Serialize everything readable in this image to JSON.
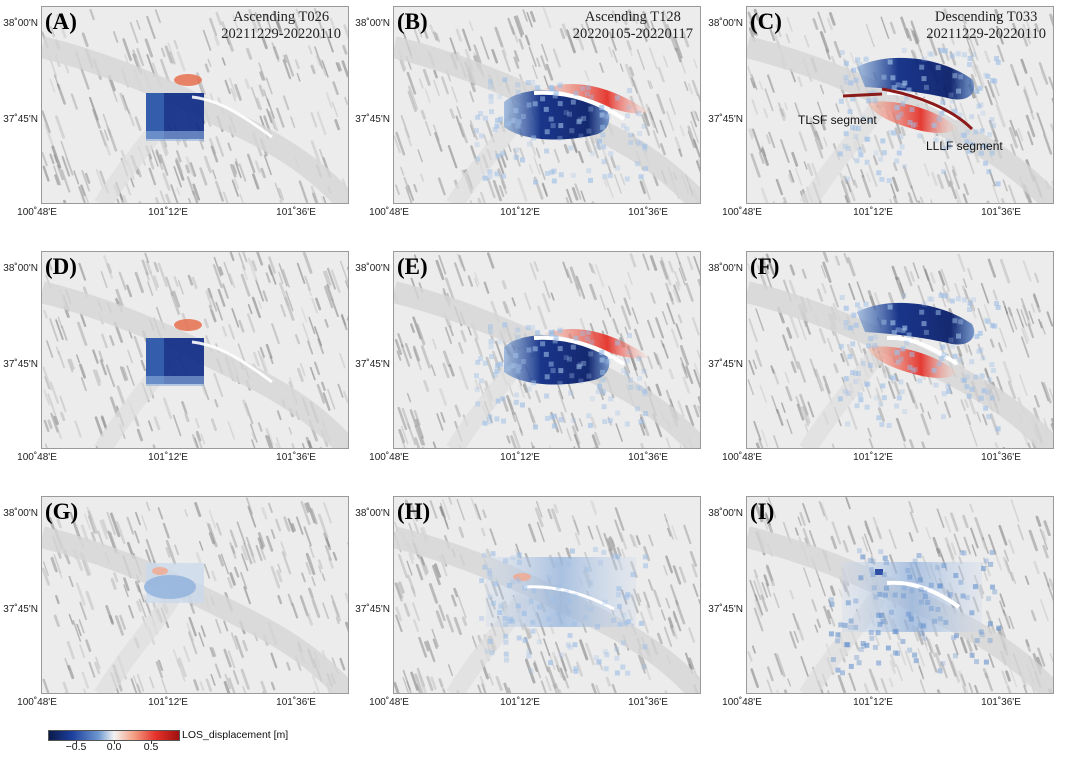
{
  "panels": [
    {
      "letter": "(A)",
      "title_line1": "Ascending T026",
      "title_line2": "20211229-20220110",
      "row": 0,
      "col": 0,
      "pattern": "ascT026"
    },
    {
      "letter": "(B)",
      "title_line1": "Ascending T128",
      "title_line2": "20220105-20220117",
      "row": 0,
      "col": 1,
      "pattern": "ascT128"
    },
    {
      "letter": "(C)",
      "title_line1": "Descending T033",
      "title_line2": "20211229-20220110",
      "row": 0,
      "col": 2,
      "pattern": "desc",
      "annotations": {
        "tlsf": "TLSF segment",
        "lllf": "LLLF segment"
      }
    },
    {
      "letter": "(D)",
      "title_line1": "",
      "title_line2": "",
      "row": 1,
      "col": 0,
      "pattern": "ascT026"
    },
    {
      "letter": "(E)",
      "title_line1": "",
      "title_line2": "",
      "row": 1,
      "col": 1,
      "pattern": "ascT128"
    },
    {
      "letter": "(F)",
      "title_line1": "",
      "title_line2": "",
      "row": 1,
      "col": 2,
      "pattern": "desc"
    },
    {
      "letter": "(G)",
      "title_line1": "",
      "title_line2": "",
      "row": 2,
      "col": 0,
      "pattern": "resA"
    },
    {
      "letter": "(H)",
      "title_line1": "",
      "title_line2": "",
      "row": 2,
      "col": 1,
      "pattern": "resB"
    },
    {
      "letter": "(I)",
      "title_line1": "",
      "title_line2": "",
      "row": 2,
      "col": 2,
      "pattern": "resC"
    }
  ],
  "axes": {
    "lat_ticks": [
      "38˚00'N",
      "37˚45'N"
    ],
    "lon_ticks": [
      "100˚48'E",
      "101˚12'E",
      "101˚36'E"
    ]
  },
  "colorbar": {
    "label": "LOS_displacement [m]",
    "ticks": [
      "−0.5",
      "0.0",
      "0.5"
    ],
    "tick_values": [
      -0.5,
      0.0,
      0.5
    ],
    "range": [
      -0.8,
      0.8
    ],
    "colors": {
      "negative": "#0a1a4a",
      "zero": "#f2f2f2",
      "positive": "#a1100f"
    }
  }
}
